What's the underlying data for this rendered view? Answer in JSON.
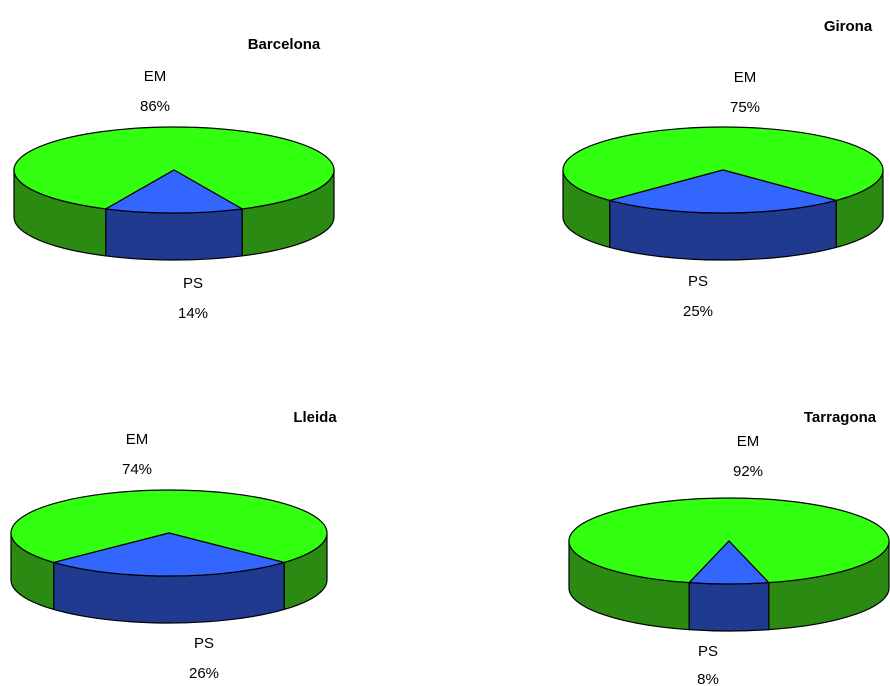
{
  "colors": {
    "em_top": "#33ff11",
    "em_side": "#2b8a12",
    "ps_top": "#3366ff",
    "ps_side": "#1f3a8f",
    "outline": "#000000"
  },
  "chart_data": [
    {
      "type": "pie",
      "title": "Barcelona",
      "slices": [
        {
          "label": "EM",
          "value": 86,
          "value_label": "86%"
        },
        {
          "label": "PS",
          "value": 14,
          "value_label": "14%"
        }
      ]
    },
    {
      "type": "pie",
      "title": "Girona",
      "slices": [
        {
          "label": "EM",
          "value": 75,
          "value_label": "75%"
        },
        {
          "label": "PS",
          "value": 25,
          "value_label": "25%"
        }
      ]
    },
    {
      "type": "pie",
      "title": "Lleida",
      "slices": [
        {
          "label": "EM",
          "value": 74,
          "value_label": "74%"
        },
        {
          "label": "PS",
          "value": 26,
          "value_label": "26%"
        }
      ]
    },
    {
      "type": "pie",
      "title": "Tarragona",
      "slices": [
        {
          "label": "EM",
          "value": 92,
          "value_label": "92%"
        },
        {
          "label": "PS",
          "value": 8,
          "value_label": "8%"
        }
      ]
    }
  ]
}
